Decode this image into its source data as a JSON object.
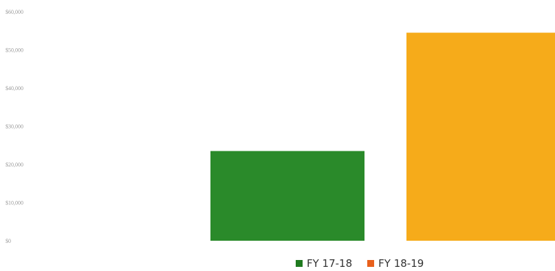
{
  "chart_data": {
    "type": "bar",
    "categories": [
      "FY 17-18",
      "FY 18-19"
    ],
    "values": [
      23500,
      54500
    ],
    "ylim": [
      0,
      60000
    ],
    "yticks": [
      {
        "value": 0,
        "label": "$0"
      },
      {
        "value": 10000,
        "label": "$10,000"
      },
      {
        "value": 20000,
        "label": "$20,000"
      },
      {
        "value": 30000,
        "label": "$30,000"
      },
      {
        "value": 40000,
        "label": "$40,000"
      },
      {
        "value": 50000,
        "label": "$50,000"
      },
      {
        "value": 60000,
        "label": "$60,000"
      }
    ],
    "bar_colors": [
      "#2a8a2a",
      "#f6ab1a"
    ],
    "grid": false,
    "legend_position": "bottom",
    "legend": [
      {
        "label": "FY 17-18",
        "color": "#1f7a1f"
      },
      {
        "label": "FY 18-19",
        "color": "#e8601c"
      }
    ]
  }
}
